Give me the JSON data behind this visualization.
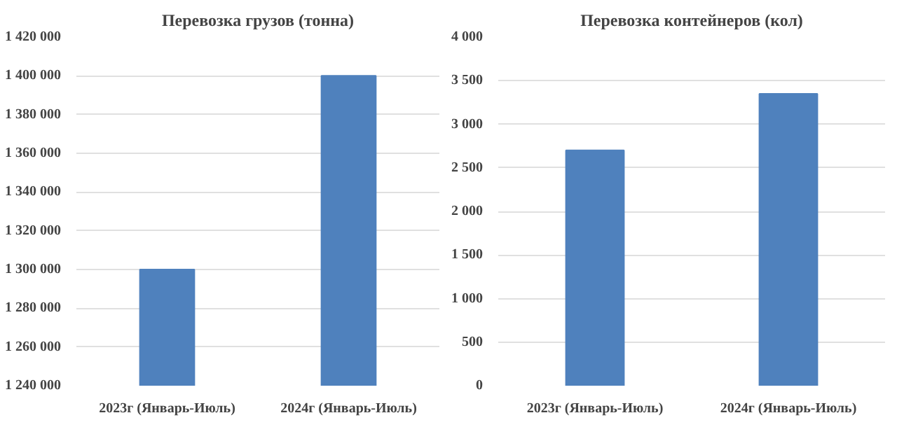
{
  "chart_data": [
    {
      "type": "bar",
      "title": "Перевозка грузов (тонна)",
      "categories": [
        "2023г (Январь-Июль)",
        "2024г (Январь-Июль)"
      ],
      "values": [
        1300000,
        1400000
      ],
      "color": "#4f81bd",
      "ylim": [
        1240000,
        1420000
      ],
      "yticks": [
        {
          "value": 1240000,
          "label": "1 240 000"
        },
        {
          "value": 1260000,
          "label": "1 260 000"
        },
        {
          "value": 1280000,
          "label": "1 280 000"
        },
        {
          "value": 1300000,
          "label": "1 300 000"
        },
        {
          "value": 1320000,
          "label": "1 320 000"
        },
        {
          "value": 1340000,
          "label": "1 340 000"
        },
        {
          "value": 1360000,
          "label": "1 360 000"
        },
        {
          "value": 1380000,
          "label": "1 380 000"
        },
        {
          "value": 1400000,
          "label": "1 400 000"
        },
        {
          "value": 1420000,
          "label": "1 420 000"
        }
      ],
      "grid": "y"
    },
    {
      "type": "bar",
      "title": "Перевозка контейнеров (кол)",
      "categories": [
        "2023г (Январь-Июль)",
        "2024г (Январь-Июль)"
      ],
      "values": [
        2700,
        3350
      ],
      "color": "#4f81bd",
      "ylim": [
        0,
        4000
      ],
      "yticks": [
        0,
        500,
        {
          "value": 1000,
          "label": "1 000"
        },
        {
          "value": 1500,
          "label": "1 500"
        },
        {
          "value": 2000,
          "label": "2 000"
        },
        {
          "value": 2500,
          "label": "2 500"
        },
        {
          "value": 3000,
          "label": "3 000"
        },
        {
          "value": 3500,
          "label": "3 500"
        },
        {
          "value": 4000,
          "label": "4 000"
        }
      ],
      "grid": "y"
    }
  ]
}
